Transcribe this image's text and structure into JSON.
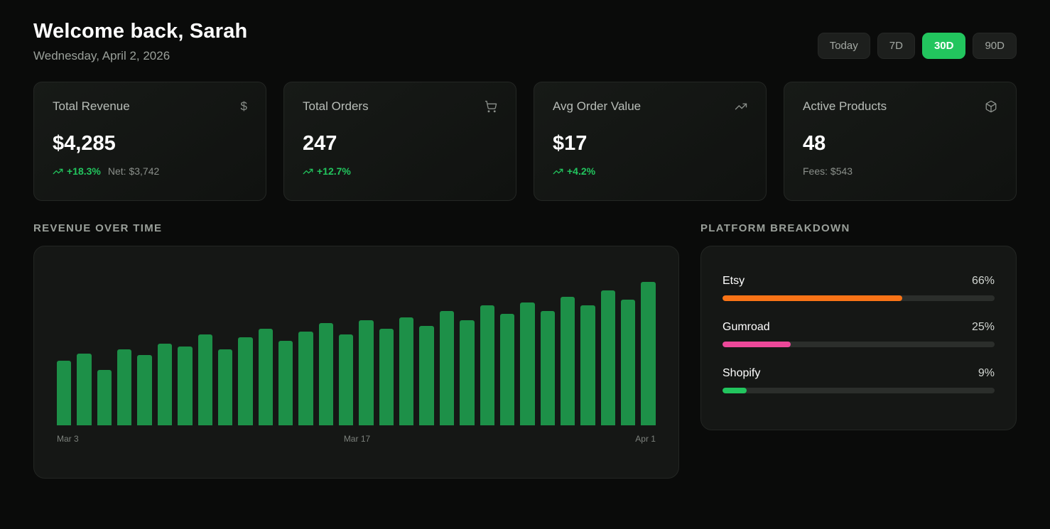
{
  "header": {
    "title": "Welcome back, Sarah",
    "subtitle": "Wednesday, April 2, 2026",
    "ranges": [
      {
        "label": "Today",
        "active": false
      },
      {
        "label": "7D",
        "active": false
      },
      {
        "label": "30D",
        "active": true
      },
      {
        "label": "90D",
        "active": false
      }
    ]
  },
  "stats": [
    {
      "label": "Total Revenue",
      "icon": "dollar-icon",
      "value": "$4,285",
      "change": "+18.3%",
      "note": "Net: $3,742"
    },
    {
      "label": "Total Orders",
      "icon": "cart-icon",
      "value": "247",
      "change": "+12.7%",
      "note": ""
    },
    {
      "label": "Avg Order Value",
      "icon": "trending-up-icon",
      "value": "$17",
      "change": "+4.2%",
      "note": ""
    },
    {
      "label": "Active Products",
      "icon": "package-icon",
      "value": "48",
      "change": "",
      "note": "Fees: $543"
    }
  ],
  "sections": {
    "revenue": "REVENUE OVER TIME",
    "platform": "PLATFORM BREAKDOWN"
  },
  "chart_data": {
    "type": "bar",
    "title": "Revenue Over Time",
    "x_axis_labels": [
      "Mar 3",
      "Mar 17",
      "Apr 1"
    ],
    "x_range": "Mar 3 - Apr 1 (daily)",
    "values": [
      44,
      49,
      38,
      52,
      48,
      56,
      54,
      62,
      52,
      60,
      66,
      58,
      64,
      70,
      62,
      72,
      66,
      74,
      68,
      78,
      72,
      82,
      76,
      84,
      78,
      88,
      82,
      92,
      86,
      98
    ],
    "ylim": [
      0,
      100
    ],
    "grid": false,
    "legend": "none",
    "bar_color": "#1d9048"
  },
  "platform_breakdown": {
    "items": [
      {
        "name": "Etsy",
        "percent_label": "66%",
        "percent": 66,
        "color": "#f97316"
      },
      {
        "name": "Gumroad",
        "percent_label": "25%",
        "percent": 25,
        "color": "#ec4899"
      },
      {
        "name": "Shopify",
        "percent_label": "9%",
        "percent": 9,
        "color": "#22c55e"
      }
    ]
  },
  "colors": {
    "accent_green": "#22c55e",
    "bar_green": "#1d9048",
    "background": "#0a0b0a",
    "card": "#151715"
  }
}
